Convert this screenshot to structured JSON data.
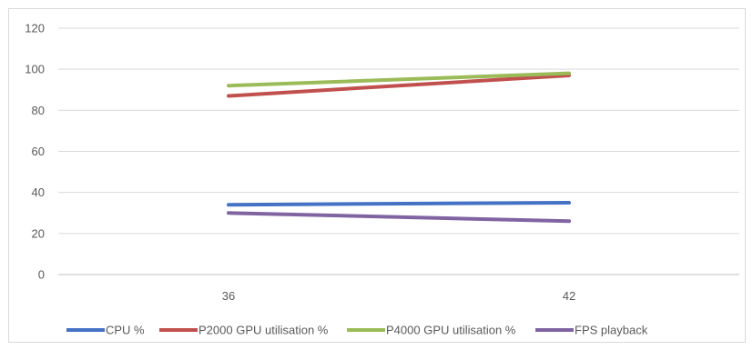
{
  "chart_data": {
    "type": "line",
    "title": "",
    "xlabel": "",
    "ylabel": "",
    "categories": [
      "36",
      "42"
    ],
    "ylim": [
      0,
      120
    ],
    "yticks": [
      0,
      20,
      40,
      60,
      80,
      100,
      120
    ],
    "grid": "horizontal",
    "legend_position": "bottom",
    "series": [
      {
        "name": "CPU %",
        "values": [
          34,
          35
        ],
        "color": "#4472c4"
      },
      {
        "name": "P2000 GPU utilisation %",
        "values": [
          87,
          97
        ],
        "color": "#c0504d"
      },
      {
        "name": "P4000 GPU utilisation %",
        "values": [
          92,
          98
        ],
        "color": "#9bbb59"
      },
      {
        "name": "FPS playback",
        "values": [
          30,
          26
        ],
        "color": "#8064a2"
      }
    ]
  }
}
